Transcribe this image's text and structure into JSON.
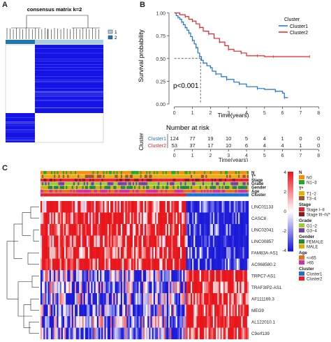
{
  "panel_labels": {
    "a": "A",
    "b": "B",
    "c": "C"
  },
  "panel_a": {
    "title": "consensus matrix k=2",
    "legend": [
      {
        "label": "1",
        "color": "#a6cee3"
      },
      {
        "label": "2",
        "color": "#1f78b4"
      }
    ],
    "cluster_sizes": [
      124,
      53
    ],
    "colors": {
      "high": "#1414e6",
      "low": "#ffffff",
      "bar1": "#a6cee3",
      "bar2": "#1f78b4"
    }
  },
  "panel_b": {
    "legend_title": "Cluster",
    "risk_title": "Number at risk",
    "risk_ylabel": "Cluster",
    "pvalue": "p<0.001",
    "colors": {
      "cluster1": "#1a6fd8",
      "cluster2": "#e8212a"
    }
  },
  "panel_c": {
    "genes": [
      "LINC01133",
      "CASC8",
      "LINC02041",
      "LINC00857",
      "FAM83A-AS1",
      "AC068580.2",
      "TRPC7-AS1",
      "TRAF3IP2-AS1",
      "AF111169.3",
      "MEG9",
      "AL122010.1",
      "C9orf139"
    ],
    "annotation_rows": [
      "N",
      "T*",
      "Stage",
      "Grade",
      "Gender",
      "Age",
      "Cluster"
    ],
    "scale_ticks": [
      "4",
      "2",
      "0",
      "-2",
      "-4"
    ],
    "legends": [
      {
        "title": "N",
        "items": [
          {
            "label": "N0",
            "color": "#ff8c00"
          },
          {
            "label": "N1−3",
            "color": "#22aa22"
          }
        ]
      },
      {
        "title": "T*",
        "items": [
          {
            "label": "T1−2",
            "color": "#e8b000"
          },
          {
            "label": "T3−4",
            "color": "#a0522d"
          }
        ]
      },
      {
        "title": "Stage",
        "items": [
          {
            "label": "Stage I−II",
            "color": "#e8212a"
          },
          {
            "label": "Stage III−IV*",
            "color": "#8b1a1a"
          }
        ]
      },
      {
        "title": "Grade",
        "items": [
          {
            "label": "G1−2",
            "color": "#9acd32"
          },
          {
            "label": "G3−4",
            "color": "#7b3fa0"
          }
        ]
      },
      {
        "title": "Gender",
        "items": [
          {
            "label": "FEMALE",
            "color": "#1f8a3a"
          },
          {
            "label": "MALE",
            "color": "#d4b000"
          }
        ]
      },
      {
        "title": "Age",
        "items": [
          {
            "label": "<=65",
            "color": "#e8701a"
          },
          {
            "label": ">65",
            "color": "#d62fa0"
          }
        ]
      },
      {
        "title": "Cluster",
        "items": [
          {
            "label": "Cluster1",
            "color": "#1a6fd8"
          },
          {
            "label": "Cluster2",
            "color": "#e8212a"
          }
        ]
      }
    ],
    "colors": {
      "high": "#e8151b",
      "mid": "#ffffff",
      "low": "#1a1ad8"
    }
  },
  "chart_data": {
    "type": "line",
    "title": "",
    "xlabel": "Time(years)",
    "ylabel": "Survival probability",
    "xlim": [
      -0.3,
      8.3
    ],
    "ylim": [
      0,
      1.05
    ],
    "x_ticks": [
      0,
      1,
      2,
      3,
      4,
      5,
      6,
      7,
      8
    ],
    "y_ticks": [
      "0.00",
      "0.25",
      "0.50",
      "0.75",
      "1.00"
    ],
    "legend": "right",
    "median_marker": {
      "x": 1.45,
      "y": 0.5
    },
    "series": [
      {
        "name": "Cluster1",
        "points": [
          [
            0,
            1
          ],
          [
            0.1,
            0.97
          ],
          [
            0.2,
            0.95
          ],
          [
            0.3,
            0.93
          ],
          [
            0.4,
            0.9
          ],
          [
            0.5,
            0.87
          ],
          [
            0.6,
            0.84
          ],
          [
            0.7,
            0.81
          ],
          [
            0.8,
            0.78
          ],
          [
            0.9,
            0.74
          ],
          [
            1.0,
            0.7
          ],
          [
            1.1,
            0.66
          ],
          [
            1.2,
            0.62
          ],
          [
            1.3,
            0.56
          ],
          [
            1.4,
            0.52
          ],
          [
            1.5,
            0.48
          ],
          [
            1.6,
            0.45
          ],
          [
            1.8,
            0.42
          ],
          [
            2.0,
            0.4
          ],
          [
            2.1,
            0.36
          ],
          [
            2.3,
            0.33
          ],
          [
            2.6,
            0.3
          ],
          [
            2.9,
            0.27
          ],
          [
            3.3,
            0.24
          ],
          [
            3.6,
            0.22
          ],
          [
            4.0,
            0.19
          ],
          [
            4.6,
            0.17
          ],
          [
            5.0,
            0.16
          ],
          [
            5.6,
            0.14
          ],
          [
            6.0,
            0.12
          ],
          [
            6.1,
            0.07
          ],
          [
            6.3,
            0.07
          ]
        ]
      },
      {
        "name": "Cluster2",
        "points": [
          [
            0,
            1
          ],
          [
            0.3,
            0.98
          ],
          [
            0.6,
            0.96
          ],
          [
            0.8,
            0.93
          ],
          [
            1.0,
            0.91
          ],
          [
            1.2,
            0.88
          ],
          [
            1.4,
            0.84
          ],
          [
            1.6,
            0.8
          ],
          [
            1.9,
            0.77
          ],
          [
            2.2,
            0.72
          ],
          [
            2.5,
            0.68
          ],
          [
            2.8,
            0.64
          ],
          [
            3.0,
            0.6
          ],
          [
            3.3,
            0.58
          ],
          [
            3.7,
            0.56
          ],
          [
            4.0,
            0.53
          ],
          [
            4.6,
            0.53
          ],
          [
            5.0,
            0.52
          ],
          [
            5.5,
            0.52
          ],
          [
            6.0,
            0.52
          ],
          [
            7.5,
            0.52
          ]
        ]
      }
    ],
    "risk_table": {
      "times": [
        0,
        1,
        2,
        3,
        4,
        5,
        6,
        7,
        8
      ],
      "rows": [
        {
          "name": "Cluster1",
          "values": [
            124,
            77,
            19,
            10,
            5,
            4,
            1,
            0,
            0
          ]
        },
        {
          "name": "Cluster2",
          "values": [
            53,
            37,
            17,
            10,
            6,
            4,
            4,
            1,
            0
          ]
        }
      ]
    }
  }
}
